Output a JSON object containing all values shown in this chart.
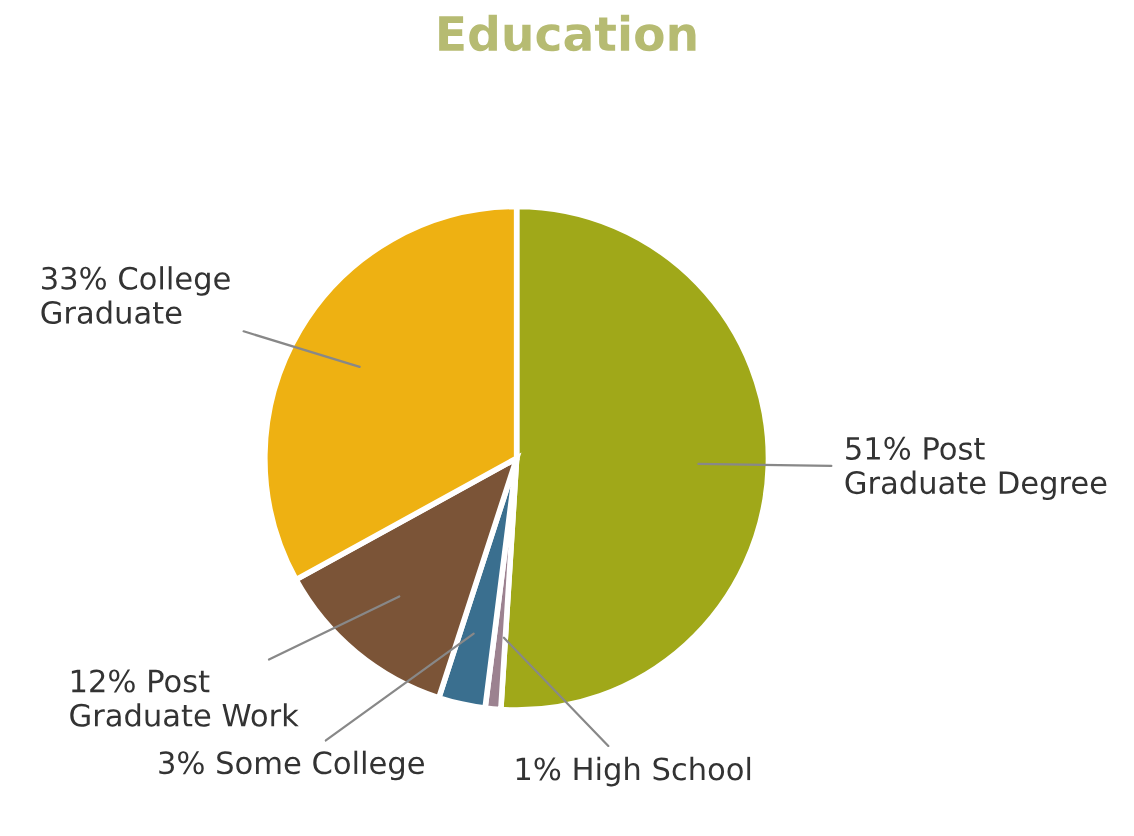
{
  "chart_data": {
    "type": "pie",
    "title": "Education",
    "categories": [
      "Post Graduate Degree",
      "High School",
      "Some College",
      "Post Graduate Work",
      "College Graduate"
    ],
    "values": [
      51,
      1,
      3,
      12,
      33
    ],
    "colors": [
      "#a0a819",
      "#9c8290",
      "#3a6f8f",
      "#7b5437",
      "#eeb112"
    ],
    "value_labels": [
      "51%",
      "1%",
      "3%",
      "12%",
      "33%"
    ]
  }
}
